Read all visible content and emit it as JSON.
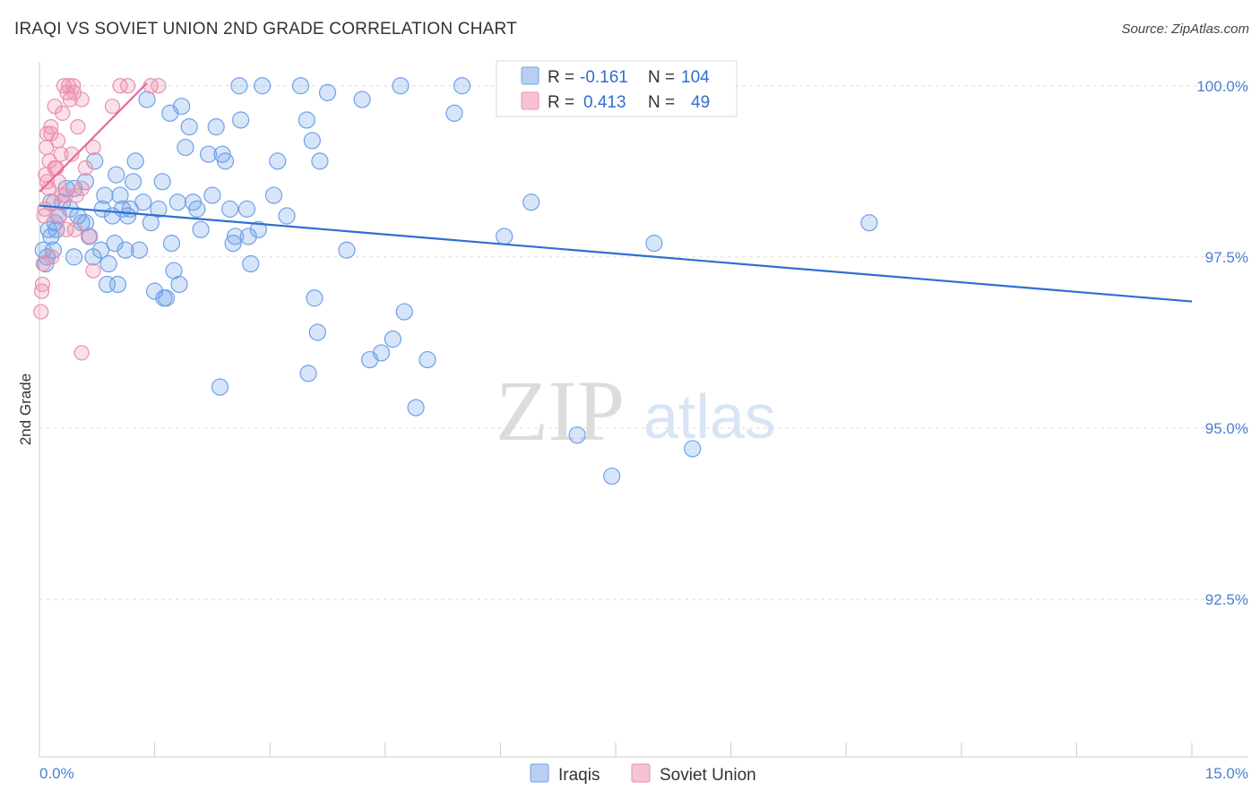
{
  "header": {
    "title": "IRAQI VS SOVIET UNION 2ND GRADE CORRELATION CHART",
    "source": "Source: ZipAtlas.com"
  },
  "watermark": {
    "zip": "ZIP",
    "atlas": "atlas"
  },
  "chart_data": {
    "type": "scatter",
    "xlabel": "",
    "ylabel": "2nd Grade",
    "xlim": [
      0,
      15
    ],
    "ylim": [
      90.2,
      100.35
    ],
    "x_tick_labels": [
      {
        "value": 0,
        "label": "0.0%"
      },
      {
        "value": 15,
        "label": "15.0%"
      }
    ],
    "y_tick_labels": [
      {
        "value": 100.0,
        "label": "100.0%"
      },
      {
        "value": 97.5,
        "label": "97.5%"
      },
      {
        "value": 95.0,
        "label": "95.0%"
      },
      {
        "value": 92.5,
        "label": "92.5%"
      }
    ],
    "grid": "horizontal dashed",
    "legend_position": "top-center",
    "legend": [
      {
        "series": "Iraqis",
        "r_label": "R =",
        "r_value": "-0.161",
        "n_label": "N =",
        "n_value": "104",
        "color": "#6fa0e8",
        "fill": "#b8cff3"
      },
      {
        "series": "Soviet Union",
        "r_label": "R =",
        "r_value": "0.413",
        "n_label": "N =",
        "n_value": "49",
        "color": "#ec8fae",
        "fill": "#f7c3d4"
      }
    ],
    "series": [
      {
        "name": "Iraqis",
        "color": "#6fa0e8",
        "trend": {
          "x": [
            0,
            15
          ],
          "y": [
            98.25,
            96.85
          ],
          "color": "#2f6fd0"
        },
        "points": [
          {
            "x": 0.05,
            "y": 97.6
          },
          {
            "x": 0.08,
            "y": 97.4
          },
          {
            "x": 0.1,
            "y": 97.5
          },
          {
            "x": 0.12,
            "y": 97.9
          },
          {
            "x": 0.15,
            "y": 97.8
          },
          {
            "x": 0.18,
            "y": 97.6
          },
          {
            "x": 0.2,
            "y": 98.0
          },
          {
            "x": 0.22,
            "y": 97.9
          },
          {
            "x": 0.25,
            "y": 98.1
          },
          {
            "x": 0.3,
            "y": 98.3
          },
          {
            "x": 0.35,
            "y": 98.5
          },
          {
            "x": 0.4,
            "y": 98.2
          },
          {
            "x": 0.45,
            "y": 98.5
          },
          {
            "x": 0.5,
            "y": 98.1
          },
          {
            "x": 0.55,
            "y": 98.0
          },
          {
            "x": 0.6,
            "y": 98.6
          },
          {
            "x": 0.65,
            "y": 97.8
          },
          {
            "x": 0.7,
            "y": 97.5
          },
          {
            "x": 0.72,
            "y": 98.9
          },
          {
            "x": 0.8,
            "y": 97.6
          },
          {
            "x": 0.82,
            "y": 98.2
          },
          {
            "x": 0.85,
            "y": 98.4
          },
          {
            "x": 0.88,
            "y": 97.1
          },
          {
            "x": 0.9,
            "y": 97.4
          },
          {
            "x": 0.95,
            "y": 98.1
          },
          {
            "x": 0.98,
            "y": 97.7
          },
          {
            "x": 1.0,
            "y": 98.7
          },
          {
            "x": 1.02,
            "y": 97.1
          },
          {
            "x": 1.05,
            "y": 98.4
          },
          {
            "x": 1.08,
            "y": 98.2
          },
          {
            "x": 1.12,
            "y": 97.6
          },
          {
            "x": 1.15,
            "y": 98.1
          },
          {
            "x": 1.18,
            "y": 98.2
          },
          {
            "x": 1.22,
            "y": 98.6
          },
          {
            "x": 1.25,
            "y": 98.9
          },
          {
            "x": 1.3,
            "y": 97.6
          },
          {
            "x": 1.35,
            "y": 98.3
          },
          {
            "x": 1.4,
            "y": 99.8
          },
          {
            "x": 1.45,
            "y": 98.0
          },
          {
            "x": 1.5,
            "y": 97.0
          },
          {
            "x": 1.55,
            "y": 98.2
          },
          {
            "x": 1.6,
            "y": 98.6
          },
          {
            "x": 1.62,
            "y": 96.9
          },
          {
            "x": 1.65,
            "y": 96.9
          },
          {
            "x": 1.7,
            "y": 99.6
          },
          {
            "x": 1.72,
            "y": 97.7
          },
          {
            "x": 1.75,
            "y": 97.3
          },
          {
            "x": 1.8,
            "y": 98.3
          },
          {
            "x": 1.82,
            "y": 97.1
          },
          {
            "x": 1.85,
            "y": 99.7
          },
          {
            "x": 1.9,
            "y": 99.1
          },
          {
            "x": 1.95,
            "y": 99.4
          },
          {
            "x": 2.0,
            "y": 98.3
          },
          {
            "x": 2.05,
            "y": 98.2
          },
          {
            "x": 2.1,
            "y": 97.9
          },
          {
            "x": 2.2,
            "y": 99.0
          },
          {
            "x": 2.25,
            "y": 98.4
          },
          {
            "x": 2.3,
            "y": 99.4
          },
          {
            "x": 2.35,
            "y": 95.6
          },
          {
            "x": 2.38,
            "y": 99.0
          },
          {
            "x": 2.42,
            "y": 98.9
          },
          {
            "x": 2.48,
            "y": 98.2
          },
          {
            "x": 2.52,
            "y": 97.7
          },
          {
            "x": 2.55,
            "y": 97.8
          },
          {
            "x": 2.6,
            "y": 100.0
          },
          {
            "x": 2.62,
            "y": 99.5
          },
          {
            "x": 2.7,
            "y": 98.2
          },
          {
            "x": 2.72,
            "y": 97.8
          },
          {
            "x": 2.75,
            "y": 97.4
          },
          {
            "x": 2.85,
            "y": 97.9
          },
          {
            "x": 2.9,
            "y": 100.0
          },
          {
            "x": 3.05,
            "y": 98.4
          },
          {
            "x": 3.1,
            "y": 98.9
          },
          {
            "x": 3.22,
            "y": 98.1
          },
          {
            "x": 3.4,
            "y": 100.0
          },
          {
            "x": 3.48,
            "y": 99.5
          },
          {
            "x": 3.5,
            "y": 95.8
          },
          {
            "x": 3.55,
            "y": 99.2
          },
          {
            "x": 3.58,
            "y": 96.9
          },
          {
            "x": 3.62,
            "y": 96.4
          },
          {
            "x": 3.65,
            "y": 98.9
          },
          {
            "x": 3.75,
            "y": 99.9
          },
          {
            "x": 4.0,
            "y": 97.6
          },
          {
            "x": 4.2,
            "y": 99.8
          },
          {
            "x": 4.3,
            "y": 96.0
          },
          {
            "x": 4.45,
            "y": 96.1
          },
          {
            "x": 4.6,
            "y": 96.3
          },
          {
            "x": 4.7,
            "y": 100.0
          },
          {
            "x": 4.75,
            "y": 96.7
          },
          {
            "x": 4.9,
            "y": 95.3
          },
          {
            "x": 5.05,
            "y": 96.0
          },
          {
            "x": 5.4,
            "y": 99.6
          },
          {
            "x": 5.5,
            "y": 100.0
          },
          {
            "x": 6.05,
            "y": 97.8
          },
          {
            "x": 6.4,
            "y": 98.3
          },
          {
            "x": 7.0,
            "y": 94.9
          },
          {
            "x": 7.45,
            "y": 94.3
          },
          {
            "x": 7.65,
            "y": 100.0
          },
          {
            "x": 8.0,
            "y": 97.7
          },
          {
            "x": 8.5,
            "y": 94.7
          },
          {
            "x": 10.8,
            "y": 98.0
          },
          {
            "x": 0.15,
            "y": 98.3
          },
          {
            "x": 0.45,
            "y": 97.5
          },
          {
            "x": 0.6,
            "y": 98.0
          }
        ]
      },
      {
        "name": "Soviet Union",
        "color": "#ec8fae",
        "trend": {
          "x": [
            0,
            1.4
          ],
          "y": [
            98.45,
            100.04
          ],
          "color": "#e8679a"
        },
        "points": [
          {
            "x": 0.02,
            "y": 96.7
          },
          {
            "x": 0.03,
            "y": 97.0
          },
          {
            "x": 0.04,
            "y": 97.1
          },
          {
            "x": 0.05,
            "y": 97.4
          },
          {
            "x": 0.06,
            "y": 98.1
          },
          {
            "x": 0.07,
            "y": 98.2
          },
          {
            "x": 0.08,
            "y": 98.7
          },
          {
            "x": 0.09,
            "y": 99.1
          },
          {
            "x": 0.1,
            "y": 99.3
          },
          {
            "x": 0.12,
            "y": 98.5
          },
          {
            "x": 0.13,
            "y": 98.9
          },
          {
            "x": 0.15,
            "y": 99.4
          },
          {
            "x": 0.16,
            "y": 97.5
          },
          {
            "x": 0.18,
            "y": 98.3
          },
          {
            "x": 0.2,
            "y": 99.7
          },
          {
            "x": 0.22,
            "y": 98.8
          },
          {
            "x": 0.24,
            "y": 99.2
          },
          {
            "x": 0.26,
            "y": 98.1
          },
          {
            "x": 0.28,
            "y": 99.0
          },
          {
            "x": 0.3,
            "y": 99.6
          },
          {
            "x": 0.32,
            "y": 100.0
          },
          {
            "x": 0.34,
            "y": 98.4
          },
          {
            "x": 0.36,
            "y": 99.9
          },
          {
            "x": 0.38,
            "y": 100.0
          },
          {
            "x": 0.4,
            "y": 99.8
          },
          {
            "x": 0.42,
            "y": 99.0
          },
          {
            "x": 0.44,
            "y": 100.0
          },
          {
            "x": 0.46,
            "y": 97.9
          },
          {
            "x": 0.48,
            "y": 98.4
          },
          {
            "x": 0.5,
            "y": 99.4
          },
          {
            "x": 0.55,
            "y": 99.8
          },
          {
            "x": 0.6,
            "y": 98.8
          },
          {
            "x": 0.65,
            "y": 97.8
          },
          {
            "x": 0.55,
            "y": 96.1
          },
          {
            "x": 0.7,
            "y": 99.1
          },
          {
            "x": 0.55,
            "y": 98.5
          },
          {
            "x": 0.95,
            "y": 99.7
          },
          {
            "x": 1.05,
            "y": 100.0
          },
          {
            "x": 1.15,
            "y": 100.0
          },
          {
            "x": 1.45,
            "y": 100.0
          },
          {
            "x": 1.55,
            "y": 100.0
          },
          {
            "x": 0.25,
            "y": 98.6
          },
          {
            "x": 0.35,
            "y": 97.9
          },
          {
            "x": 0.15,
            "y": 99.3
          },
          {
            "x": 0.1,
            "y": 98.6
          },
          {
            "x": 0.2,
            "y": 98.8
          },
          {
            "x": 0.3,
            "y": 98.4
          },
          {
            "x": 0.7,
            "y": 97.3
          },
          {
            "x": 0.45,
            "y": 99.9
          }
        ]
      }
    ]
  }
}
